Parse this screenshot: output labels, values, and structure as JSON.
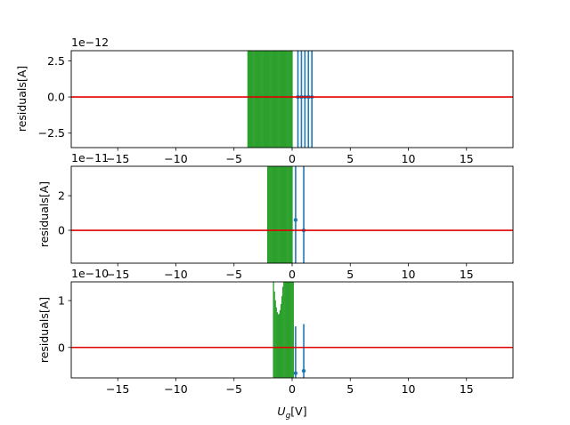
{
  "colors": {
    "residual_band": "#2ca02c",
    "error_bars": "#1f77b4",
    "zero_line": "#e00000"
  },
  "chart_data": [
    {
      "type": "scatter",
      "ylabel": "residuals[A]",
      "xlabel": "",
      "offset_text": "1e−12",
      "xlim": [
        -19,
        19
      ],
      "ylim": [
        -3.5,
        3.2
      ],
      "xticks": [
        -15,
        -10,
        -5,
        0,
        5,
        10,
        15
      ],
      "xtick_labels": [
        "−15",
        "−10",
        "−5",
        "0",
        "5",
        "10",
        "15"
      ],
      "yticks": [
        -2.5,
        0,
        2.5
      ],
      "ytick_labels": [
        "−2.5",
        "0.0",
        "2.5"
      ],
      "band": {
        "x": [
          -3.8,
          0.0
        ],
        "y": [
          -3.5,
          3.2
        ],
        "sag": 0
      },
      "error_bars": [
        {
          "x": 0.5,
          "y": 0.0,
          "err": 4.0
        },
        {
          "x": 0.8,
          "y": 0.0,
          "err": 4.0
        },
        {
          "x": 1.1,
          "y": 0.0,
          "err": 4.0
        },
        {
          "x": 1.4,
          "y": 0.0,
          "err": 4.0
        },
        {
          "x": 1.7,
          "y": 0.0,
          "err": 4.0
        }
      ],
      "zero_line": 0
    },
    {
      "type": "scatter",
      "ylabel": "residuals[A]",
      "xlabel": "",
      "offset_text": "1e−11",
      "xlim": [
        -19,
        19
      ],
      "ylim": [
        -1.9,
        3.7
      ],
      "xticks": [
        -15,
        -10,
        -5,
        0,
        5,
        10,
        15
      ],
      "xtick_labels": [
        "−15",
        "−10",
        "−5",
        "0",
        "5",
        "10",
        "15"
      ],
      "yticks": [
        0,
        2
      ],
      "ytick_labels": [
        "0",
        "2"
      ],
      "band": {
        "x": [
          -2.1,
          0.0
        ],
        "y": [
          -1.9,
          3.7
        ],
        "sag": 0
      },
      "error_bars": [
        {
          "x": 0.3,
          "y": 0.6,
          "err": 4.0
        },
        {
          "x": 1.0,
          "y": 0.0,
          "err": 4.0
        }
      ],
      "zero_line": 0
    },
    {
      "type": "scatter",
      "ylabel": "residuals[A]",
      "xlabel": "U_g[V]",
      "offset_text": "1e−10",
      "xlim": [
        -19,
        19
      ],
      "ylim": [
        -0.65,
        1.4
      ],
      "xticks": [
        -15,
        -10,
        -5,
        0,
        5,
        10,
        15
      ],
      "xtick_labels": [
        "−15",
        "−10",
        "−5",
        "0",
        "5",
        "10",
        "15"
      ],
      "yticks": [
        0,
        1
      ],
      "ytick_labels": [
        "0",
        "1"
      ],
      "band": {
        "x": [
          -1.6,
          0.1
        ],
        "y": [
          -0.65,
          1.4
        ],
        "sag": 0.9
      },
      "error_bars": [
        {
          "x": 0.3,
          "y": -0.55,
          "err": 1.0
        },
        {
          "x": 1.0,
          "y": -0.5,
          "err": 1.0
        }
      ],
      "zero_line": 0
    }
  ]
}
